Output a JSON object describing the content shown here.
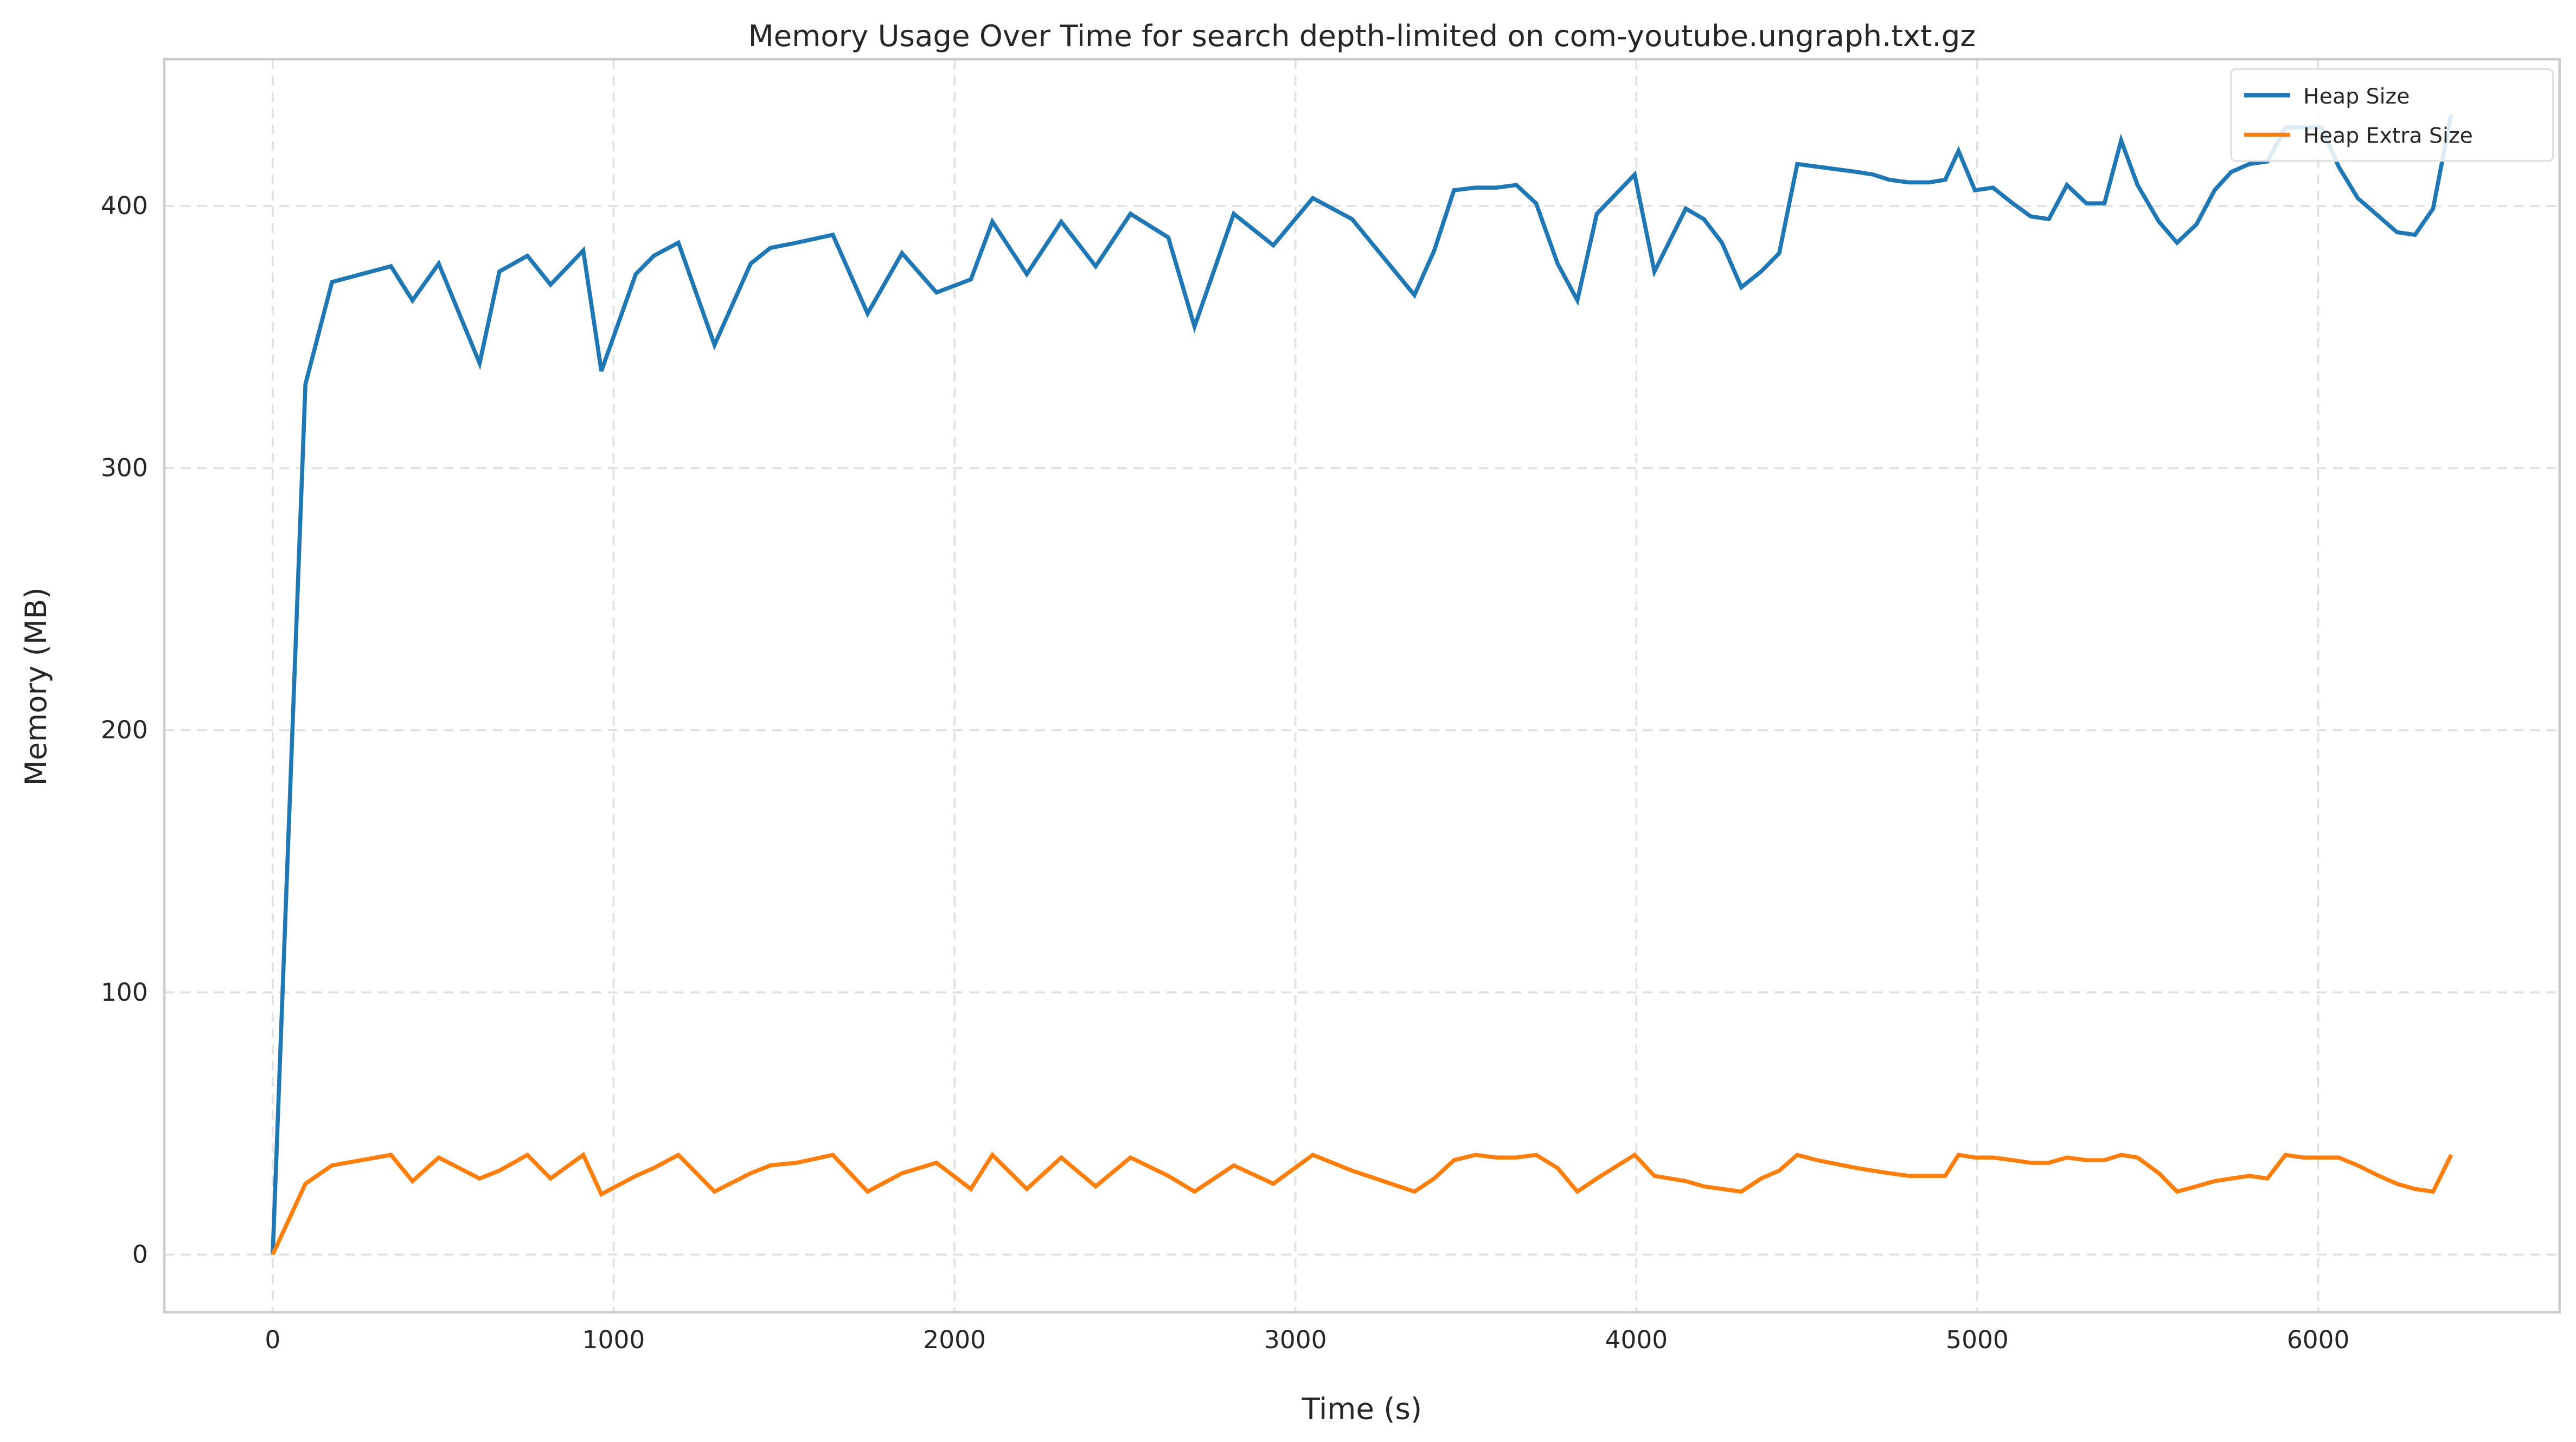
{
  "chart_data": {
    "type": "line",
    "title": "Memory Usage Over Time for search depth-limited on com-youtube.ungraph.txt.gz",
    "x_label": "Time (s)",
    "y_label": "Memory (MB)",
    "x": [
      0,
      96,
      174,
      347,
      410,
      487,
      607,
      665,
      747,
      815,
      911,
      964,
      1065,
      1118,
      1190,
      1296,
      1402,
      1460,
      1537,
      1643,
      1745,
      1846,
      1947,
      2048,
      2111,
      2212,
      2313,
      2414,
      2516,
      2627,
      2704,
      2819,
      2935,
      3051,
      3166,
      3349,
      3407,
      3465,
      3528,
      3590,
      3648,
      3706,
      3769,
      3827,
      3884,
      3995,
      4053,
      4145,
      4198,
      4251,
      4308,
      4366,
      4419,
      4472,
      4530,
      4646,
      4694,
      4742,
      4800,
      4858,
      4906,
      4945,
      4993,
      5046,
      5104,
      5157,
      5210,
      5263,
      5320,
      5373,
      5422,
      5470,
      5533,
      5586,
      5643,
      5696,
      5745,
      5798,
      5851,
      5904,
      5957,
      6010,
      6060,
      6116,
      6178,
      6231,
      6284,
      6337,
      6390
    ],
    "series": [
      {
        "name": "Heap Size",
        "color": "#1f77b4",
        "values": [
          0,
          332,
          371,
          377,
          364,
          378,
          340,
          375,
          381,
          370,
          383,
          337,
          374,
          381,
          386,
          347,
          378,
          384,
          386,
          389,
          359,
          382,
          367,
          372,
          394,
          374,
          394,
          377,
          397,
          388,
          354,
          397,
          385,
          403,
          395,
          366,
          383,
          406,
          407,
          407,
          408,
          401,
          378,
          364,
          397,
          412,
          375,
          399,
          395,
          386,
          369,
          375,
          382,
          416,
          415,
          413,
          412,
          410,
          409,
          409,
          410,
          421,
          406,
          407,
          401,
          396,
          395,
          408,
          401,
          401,
          425,
          408,
          394,
          386,
          393,
          406,
          413,
          416,
          417,
          430,
          430,
          430,
          415,
          403,
          396,
          390,
          389,
          399,
          435
        ]
      },
      {
        "name": "Heap Extra Size",
        "color": "#ff7f0e",
        "values": [
          0,
          27,
          34,
          38,
          28,
          37,
          29,
          32,
          38,
          29,
          38,
          23,
          30,
          33,
          38,
          24,
          31,
          34,
          35,
          38,
          24,
          31,
          35,
          25,
          38,
          25,
          37,
          26,
          37,
          30,
          24,
          34,
          27,
          38,
          32,
          24,
          29,
          36,
          38,
          37,
          37,
          38,
          33,
          24,
          29,
          38,
          30,
          28,
          26,
          25,
          24,
          29,
          32,
          38,
          36,
          33,
          32,
          31,
          30,
          30,
          30,
          38,
          37,
          37,
          36,
          35,
          35,
          37,
          36,
          36,
          38,
          37,
          31,
          24,
          26,
          28,
          29,
          30,
          29,
          38,
          37,
          37,
          37,
          34,
          30,
          27,
          25,
          24,
          38
        ]
      }
    ],
    "xlim": [
      -318,
      6708
    ],
    "ylim": [
      -22,
      456
    ],
    "xticks": [
      0,
      1000,
      2000,
      3000,
      4000,
      5000,
      6000
    ],
    "yticks": [
      0,
      100,
      200,
      300,
      400
    ],
    "grid": true,
    "legend": "upper right"
  }
}
